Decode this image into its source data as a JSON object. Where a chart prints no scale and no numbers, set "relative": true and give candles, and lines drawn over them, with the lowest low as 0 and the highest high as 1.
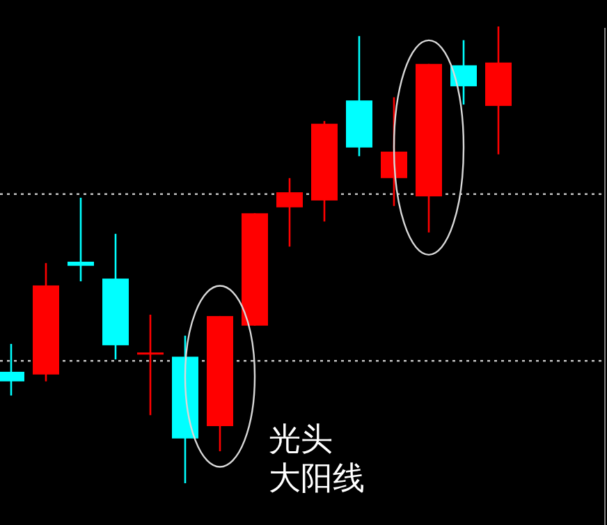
{
  "chart_data": {
    "type": "candlestick",
    "relative": true,
    "categories": [
      null,
      null,
      null,
      null,
      null,
      null,
      null,
      null,
      null,
      null,
      null,
      null,
      null,
      null,
      null
    ],
    "ohlc": [
      [
        0.244,
        0.305,
        0.192,
        0.223
      ],
      [
        0.238,
        0.482,
        0.223,
        0.433
      ],
      [
        0.485,
        0.625,
        0.442,
        0.476
      ],
      [
        0.448,
        0.546,
        0.271,
        0.302
      ],
      [
        0.284,
        0.369,
        0.149,
        0.284
      ],
      [
        0.277,
        0.323,
        0,
        0.098
      ],
      [
        0.125,
        0.366,
        0.07,
        0.366
      ],
      [
        0.345,
        0.591,
        0.345,
        0.591
      ],
      [
        0.604,
        0.668,
        0.518,
        0.637
      ],
      [
        0.619,
        0.793,
        0.573,
        0.787
      ],
      [
        0.838,
        0.979,
        0.716,
        0.735
      ],
      [
        0.668,
        0.845,
        0.607,
        0.726
      ],
      [
        0.628,
        0.918,
        0.549,
        0.918
      ],
      [
        0.915,
        0.97,
        0.829,
        0.869
      ],
      [
        0.826,
        1,
        0.72,
        0.921
      ]
    ],
    "colors": [
      "#00ffff",
      "#ff0000",
      "#00ffff",
      "#00ffff",
      "#ff0000",
      "#00ffff",
      "#ff0000",
      "#ff0000",
      "#ff0000",
      "#ff0000",
      "#00ffff",
      "#ff0000",
      "#ff0000",
      "#00ffff",
      "#ff0000"
    ],
    "ref_lines": [
      {
        "axis": "y",
        "value": 0.633,
        "color": "#c0c0c0",
        "line_style": "dotted"
      },
      {
        "axis": "y",
        "value": 0.268,
        "color": "#c0c0c0",
        "line_style": "dotted"
      }
    ],
    "annotations": [
      "光头",
      "大阳线"
    ]
  }
}
